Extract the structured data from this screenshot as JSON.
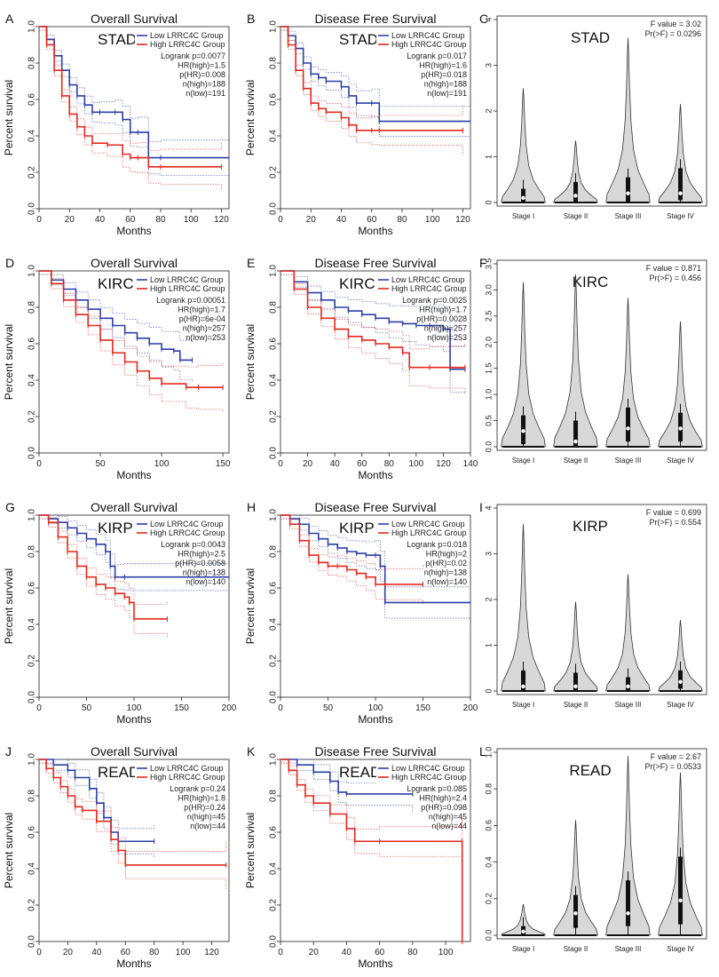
{
  "figure": {
    "panel_letters": [
      "A",
      "B",
      "C",
      "D",
      "E",
      "F",
      "G",
      "H",
      "I",
      "J",
      "K",
      "L"
    ],
    "colors": {
      "low": "#2b3fa8",
      "high": "#e3281c",
      "violin_fill": "#d8d8d8",
      "axis": "#222222"
    }
  },
  "chart_data": [
    {
      "id": "A",
      "type": "line",
      "title": "Overall Survival",
      "cancer": "STAD",
      "xlabel": "Months",
      "ylabel": "Percent survival",
      "xlim": [
        0,
        125
      ],
      "xticks": [
        0,
        20,
        40,
        60,
        80,
        100,
        120
      ],
      "ylim": [
        0,
        1
      ],
      "yticks": [
        0,
        0.2,
        0.4,
        0.6,
        0.8,
        1.0
      ],
      "legend": [
        "Low LRRC4C Group",
        "High LRRC4C Group"
      ],
      "stats": [
        "Logrank p=0.0077",
        "HR(high)=1.5",
        "p(HR)=0.008",
        "n(high)=188",
        "n(low)=191"
      ],
      "series": [
        {
          "name": "Low LRRC4C Group",
          "x": [
            0,
            5,
            10,
            15,
            20,
            25,
            30,
            35,
            40,
            50,
            55,
            60,
            65,
            72,
            80,
            125
          ],
          "y": [
            1,
            0.93,
            0.84,
            0.76,
            0.68,
            0.62,
            0.57,
            0.53,
            0.53,
            0.53,
            0.49,
            0.42,
            0.42,
            0.28,
            0.28,
            0.28
          ]
        },
        {
          "name": "High LRRC4C Group",
          "x": [
            0,
            5,
            10,
            15,
            20,
            25,
            30,
            35,
            45,
            55,
            60,
            65,
            72,
            80,
            120
          ],
          "y": [
            1,
            0.9,
            0.76,
            0.62,
            0.52,
            0.45,
            0.4,
            0.36,
            0.35,
            0.3,
            0.28,
            0.28,
            0.23,
            0.23,
            0.23
          ]
        }
      ]
    },
    {
      "id": "B",
      "type": "line",
      "title": "Disease Free Survival",
      "cancer": "STAD",
      "xlabel": "Months",
      "ylabel": "Percent survival",
      "xlim": [
        0,
        125
      ],
      "xticks": [
        0,
        20,
        40,
        60,
        80,
        100,
        120
      ],
      "ylim": [
        0,
        1
      ],
      "yticks": [
        0,
        0.2,
        0.4,
        0.6,
        0.8,
        1.0
      ],
      "legend": [
        "Low LRRC4C Group",
        "High LRRC4C Group"
      ],
      "stats": [
        "Logrank p=0.017",
        "HR(high)=1.6",
        "p(HR)=0.018",
        "n(high)=188",
        "n(low)=191"
      ],
      "series": [
        {
          "name": "Low LRRC4C Group",
          "x": [
            0,
            5,
            10,
            15,
            20,
            25,
            30,
            40,
            45,
            50,
            60,
            65,
            125
          ],
          "y": [
            1,
            0.95,
            0.88,
            0.8,
            0.74,
            0.72,
            0.7,
            0.67,
            0.62,
            0.58,
            0.58,
            0.48,
            0.48
          ]
        },
        {
          "name": "High LRRC4C Group",
          "x": [
            0,
            5,
            10,
            15,
            20,
            25,
            30,
            40,
            45,
            50,
            60,
            65,
            120
          ],
          "y": [
            1,
            0.9,
            0.76,
            0.66,
            0.58,
            0.55,
            0.53,
            0.5,
            0.46,
            0.43,
            0.43,
            0.43,
            0.43
          ]
        }
      ]
    },
    {
      "id": "C",
      "type": "violin",
      "cancer": "STAD",
      "categories": [
        "Stage I",
        "Stage II",
        "Stage III",
        "Stage IV"
      ],
      "ylim": [
        0,
        4
      ],
      "yticks": [
        0,
        1,
        2,
        3,
        4
      ],
      "stats": [
        "F value = 3.02",
        "Pr(>F) = 0.0296"
      ],
      "max": [
        2.5,
        1.35,
        3.6,
        2.15
      ],
      "median": [
        0.1,
        0.15,
        0.2,
        0.2
      ],
      "q1": [
        0,
        0,
        0,
        0.05
      ],
      "q3": [
        0.3,
        0.45,
        0.55,
        0.75
      ]
    },
    {
      "id": "D",
      "type": "line",
      "title": "Overall Survival",
      "cancer": "KIRC",
      "xlabel": "Months",
      "ylabel": "Percent survival",
      "xlim": [
        0,
        155
      ],
      "xticks": [
        0,
        50,
        100,
        150
      ],
      "ylim": [
        0,
        1
      ],
      "yticks": [
        0,
        0.2,
        0.4,
        0.6,
        0.8,
        1.0
      ],
      "legend": [
        "Low LRRC4C Group",
        "High LRRC4C Group"
      ],
      "stats": [
        "Logrank p=0.00051",
        "HR(high)=1.7",
        "p(HR)=6e-04",
        "n(high)=257",
        "n(low)=253"
      ],
      "series": [
        {
          "name": "Low LRRC4C Group",
          "x": [
            0,
            10,
            20,
            30,
            40,
            50,
            60,
            70,
            80,
            90,
            100,
            110,
            115,
            125
          ],
          "y": [
            1,
            0.95,
            0.9,
            0.84,
            0.79,
            0.74,
            0.7,
            0.66,
            0.63,
            0.6,
            0.57,
            0.56,
            0.51,
            0.51
          ]
        },
        {
          "name": "High LRRC4C Group",
          "x": [
            0,
            10,
            20,
            30,
            40,
            50,
            60,
            70,
            80,
            90,
            100,
            120,
            130,
            150
          ],
          "y": [
            1,
            0.93,
            0.84,
            0.76,
            0.7,
            0.62,
            0.55,
            0.5,
            0.45,
            0.41,
            0.38,
            0.36,
            0.36,
            0.36
          ]
        }
      ]
    },
    {
      "id": "E",
      "type": "line",
      "title": "Disease Free Survival",
      "cancer": "KIRC",
      "xlabel": "Months",
      "ylabel": "Percent survival",
      "xlim": [
        0,
        140
      ],
      "xticks": [
        0,
        20,
        40,
        60,
        80,
        100,
        120,
        140
      ],
      "ylim": [
        0,
        1
      ],
      "yticks": [
        0,
        0.2,
        0.4,
        0.6,
        0.8,
        1.0
      ],
      "legend": [
        "Low LRRC4C Group",
        "High LRRC4C Group"
      ],
      "stats": [
        "Logrank p=0.0025",
        "HR(high)=1.7",
        "p(HR)=0.0028",
        "n(high)=257",
        "n(low)=253"
      ],
      "series": [
        {
          "name": "Low LRRC4C Group",
          "x": [
            0,
            10,
            20,
            30,
            40,
            50,
            60,
            70,
            80,
            90,
            100,
            110,
            120,
            125,
            136
          ],
          "y": [
            1,
            0.94,
            0.88,
            0.84,
            0.8,
            0.78,
            0.76,
            0.74,
            0.72,
            0.71,
            0.7,
            0.7,
            0.68,
            0.46,
            0.46
          ]
        },
        {
          "name": "High LRRC4C Group",
          "x": [
            0,
            10,
            20,
            30,
            40,
            50,
            60,
            70,
            80,
            90,
            95,
            110,
            136
          ],
          "y": [
            1,
            0.9,
            0.8,
            0.74,
            0.68,
            0.64,
            0.62,
            0.6,
            0.58,
            0.55,
            0.47,
            0.47,
            0.47
          ]
        }
      ]
    },
    {
      "id": "F",
      "type": "violin",
      "cancer": "KIRC",
      "categories": [
        "Stage I",
        "Stage II",
        "Stage III",
        "Stage IV"
      ],
      "ylim": [
        0,
        3.5
      ],
      "yticks": [
        0,
        0.5,
        1.0,
        1.5,
        2.0,
        2.5,
        3.0,
        3.5
      ],
      "stats": [
        "F value = 0.871",
        "Pr(>F) = 0.456"
      ],
      "max": [
        3.15,
        3.3,
        2.85,
        2.4
      ],
      "median": [
        0.3,
        0.1,
        0.35,
        0.35
      ],
      "q1": [
        0.05,
        0,
        0.1,
        0.1
      ],
      "q3": [
        0.6,
        0.5,
        0.75,
        0.65
      ]
    },
    {
      "id": "G",
      "type": "line",
      "title": "Overall Survival",
      "cancer": "KIRP",
      "xlabel": "Months",
      "ylabel": "Percent survival",
      "xlim": [
        0,
        200
      ],
      "xticks": [
        0,
        50,
        100,
        150,
        200
      ],
      "ylim": [
        0,
        1
      ],
      "yticks": [
        0,
        0.2,
        0.4,
        0.6,
        0.8,
        1.0
      ],
      "legend": [
        "Low LRRC4C Group",
        "High LRRC4C Group"
      ],
      "stats": [
        "Logrank p=0.0043",
        "HR(high)=2.5",
        "p(HR)=0.0058",
        "n(high)=138",
        "n(low)=140"
      ],
      "series": [
        {
          "name": "Low LRRC4C Group",
          "x": [
            0,
            10,
            20,
            30,
            40,
            50,
            60,
            70,
            75,
            80,
            90,
            200
          ],
          "y": [
            1,
            0.98,
            0.96,
            0.93,
            0.9,
            0.87,
            0.84,
            0.8,
            0.72,
            0.66,
            0.66,
            0.66
          ]
        },
        {
          "name": "High LRRC4C Group",
          "x": [
            0,
            10,
            20,
            30,
            40,
            50,
            60,
            70,
            80,
            90,
            95,
            100,
            135
          ],
          "y": [
            1,
            0.96,
            0.88,
            0.8,
            0.72,
            0.66,
            0.62,
            0.6,
            0.57,
            0.55,
            0.52,
            0.43,
            0.43
          ]
        }
      ]
    },
    {
      "id": "H",
      "type": "line",
      "title": "Disease Free Survival",
      "cancer": "KIRP",
      "xlabel": "Months",
      "ylabel": "Percent survival",
      "xlim": [
        0,
        200
      ],
      "xticks": [
        0,
        50,
        100,
        150,
        200
      ],
      "ylim": [
        0,
        1
      ],
      "yticks": [
        0,
        0.2,
        0.4,
        0.6,
        0.8,
        1.0
      ],
      "legend": [
        "Low LRRC4C Group",
        "High LRRC4C Group"
      ],
      "stats": [
        "Logrank p=0.018",
        "HR(high)=2",
        "p(HR)=0.02",
        "n(high)=138",
        "n(low)=140"
      ],
      "series": [
        {
          "name": "Low LRRC4C Group",
          "x": [
            0,
            10,
            20,
            30,
            40,
            50,
            60,
            70,
            80,
            90,
            100,
            105,
            110,
            200
          ],
          "y": [
            1,
            0.98,
            0.95,
            0.9,
            0.87,
            0.84,
            0.82,
            0.8,
            0.79,
            0.78,
            0.78,
            0.72,
            0.52,
            0.52
          ]
        },
        {
          "name": "High LRRC4C Group",
          "x": [
            0,
            10,
            20,
            30,
            40,
            50,
            60,
            70,
            80,
            90,
            100,
            110,
            150
          ],
          "y": [
            1,
            0.95,
            0.86,
            0.78,
            0.74,
            0.72,
            0.72,
            0.7,
            0.68,
            0.66,
            0.62,
            0.62,
            0.62
          ]
        }
      ]
    },
    {
      "id": "I",
      "type": "violin",
      "cancer": "KIRP",
      "categories": [
        "Stage I",
        "Stage II",
        "Stage III",
        "Stage IV"
      ],
      "ylim": [
        0,
        4
      ],
      "yticks": [
        0,
        1,
        2,
        3,
        4
      ],
      "stats": [
        "F value = 0.699",
        "Pr(>F) = 0.554"
      ],
      "max": [
        3.65,
        1.95,
        2.55,
        1.55
      ],
      "median": [
        0.1,
        0.1,
        0.1,
        0.2
      ],
      "q1": [
        0,
        0,
        0,
        0.05
      ],
      "q3": [
        0.45,
        0.4,
        0.3,
        0.45
      ]
    },
    {
      "id": "J",
      "type": "line",
      "title": "Overall Survival",
      "cancer": "READ",
      "xlabel": "Months",
      "ylabel": "Percent survival",
      "xlim": [
        0,
        132
      ],
      "xticks": [
        0,
        20,
        40,
        60,
        80,
        100,
        120
      ],
      "ylim": [
        0,
        1
      ],
      "yticks": [
        0,
        0.2,
        0.4,
        0.6,
        0.8,
        1.0
      ],
      "legend": [
        "Low LRRC4C Group",
        "High LRRC4C Group"
      ],
      "stats": [
        "Logrank p=0.24",
        "HR(high)=1.8",
        "p(HR)=0.24",
        "n(high)=45",
        "n(low)=44"
      ],
      "series": [
        {
          "name": "Low LRRC4C Group",
          "x": [
            0,
            10,
            20,
            25,
            35,
            40,
            45,
            50,
            55,
            80
          ],
          "y": [
            1,
            0.97,
            0.94,
            0.9,
            0.84,
            0.76,
            0.68,
            0.6,
            0.55,
            0.55
          ]
        },
        {
          "name": "High LRRC4C Group",
          "x": [
            0,
            5,
            10,
            15,
            20,
            25,
            30,
            40,
            50,
            55,
            60,
            130
          ],
          "y": [
            1,
            0.95,
            0.9,
            0.85,
            0.8,
            0.74,
            0.72,
            0.66,
            0.56,
            0.5,
            0.42,
            0.42
          ]
        }
      ]
    },
    {
      "id": "K",
      "type": "line",
      "title": "Disease Free Survival",
      "cancer": "READ",
      "xlabel": "Months",
      "ylabel": "Percent survival",
      "xlim": [
        0,
        115
      ],
      "xticks": [
        0,
        20,
        40,
        60,
        80,
        100
      ],
      "ylim": [
        0,
        1
      ],
      "yticks": [
        0,
        0.2,
        0.4,
        0.6,
        0.8,
        1.0
      ],
      "legend": [
        "Low LRRC4C Group",
        "High LRRC4C Group"
      ],
      "stats": [
        "Logrank p=0.085",
        "HR(high)=2.4",
        "p(HR)=0.098",
        "n(high)=45",
        "n(low)=44"
      ],
      "series": [
        {
          "name": "Low LRRC4C Group",
          "x": [
            0,
            10,
            20,
            30,
            35,
            40,
            80
          ],
          "y": [
            1,
            0.97,
            0.93,
            0.88,
            0.82,
            0.81,
            0.81
          ]
        },
        {
          "name": "High LRRC4C Group",
          "x": [
            0,
            5,
            10,
            15,
            20,
            30,
            40,
            45,
            60,
            110,
            110
          ],
          "y": [
            1,
            0.94,
            0.86,
            0.8,
            0.76,
            0.7,
            0.62,
            0.55,
            0.55,
            0.55,
            0.0
          ]
        }
      ]
    },
    {
      "id": "L",
      "type": "violin",
      "cancer": "READ",
      "categories": [
        "Stage I",
        "Stage II",
        "Stage III",
        "Stage IV"
      ],
      "ylim": [
        0,
        1.0
      ],
      "yticks": [
        0,
        0.2,
        0.4,
        0.6,
        0.8,
        1.0
      ],
      "stats": [
        "F value = 2.67",
        "Pr(>F) = 0.0533"
      ],
      "max": [
        0.17,
        0.63,
        0.98,
        0.89
      ],
      "median": [
        0.02,
        0.12,
        0.12,
        0.19
      ],
      "q1": [
        0,
        0.04,
        0.05,
        0.06
      ],
      "q3": [
        0.05,
        0.22,
        0.3,
        0.43
      ]
    }
  ]
}
